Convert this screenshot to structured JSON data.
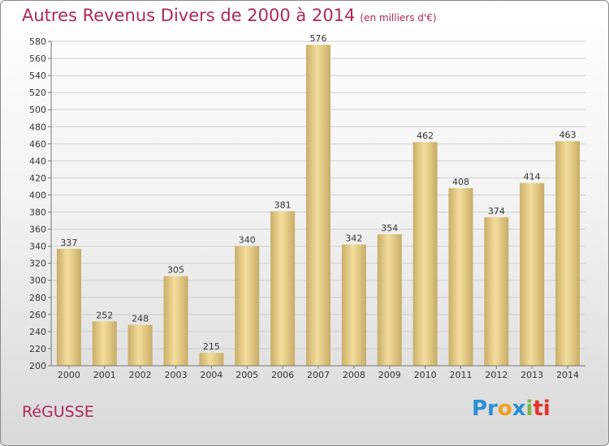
{
  "title": "Autres Revenus Divers de 2000 à 2014",
  "subtitle": "(en milliers d'€)",
  "commune": "RéGUSSE",
  "logo": {
    "p1": "Pr",
    "p2": "o",
    "p3": "x",
    "p4": "i",
    "p5": "ti"
  },
  "colors": {
    "title": "#b0285a",
    "bar_light": "#f3dc9a",
    "bar_dark": "#c7ac67",
    "grid": "#cccccc"
  },
  "chart_data": {
    "type": "bar",
    "title": "Autres Revenus Divers de 2000 à 2014",
    "subtitle": "(en milliers d'€)",
    "categories": [
      "2000",
      "2001",
      "2002",
      "2003",
      "2004",
      "2005",
      "2006",
      "2007",
      "2008",
      "2009",
      "2010",
      "2011",
      "2012",
      "2013",
      "2014"
    ],
    "values": [
      337,
      252,
      248,
      305,
      215,
      340,
      381,
      576,
      342,
      354,
      462,
      408,
      374,
      414,
      463
    ],
    "ylim": [
      200,
      580
    ],
    "ytick_step": 20,
    "grid": true,
    "legend": "none"
  }
}
